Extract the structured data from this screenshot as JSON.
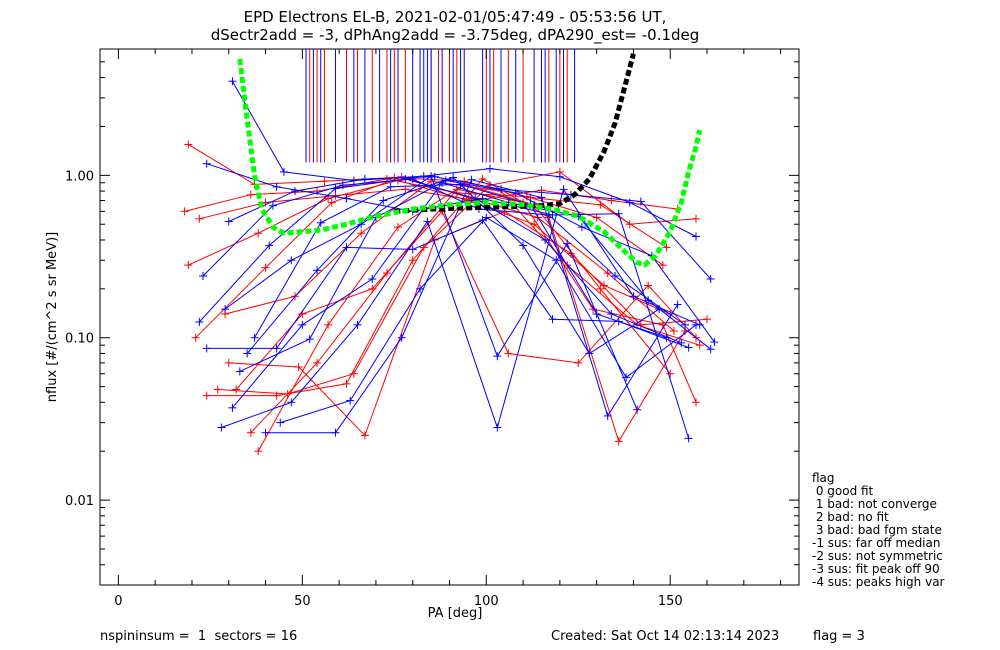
{
  "chart_data": {
    "type": "line",
    "title": "EPD Electrons EL-B, 2021-02-01/05:47:49 - 05:53:56 UT,",
    "subtitle": "dSectr2add = -3, dPhAng2add = -3.75deg, dPA290_est=  -0.1deg",
    "xlabel": "PA [deg]",
    "ylabel": "nflux [#/(cm^2 s sr MeV)]",
    "x_scale": "linear",
    "y_scale": "log",
    "xlim": [
      -5,
      185
    ],
    "ylim": [
      0.003,
      6.0
    ],
    "x_ticks": [
      0,
      50,
      100,
      150
    ],
    "x_tick_labels": [
      "0",
      "50",
      "100",
      "150"
    ],
    "y_ticks": [
      0.01,
      0.1,
      1.0
    ],
    "y_tick_labels": [
      "0.01",
      "0.10",
      "1.00"
    ],
    "grid": false,
    "colors": {
      "red": "#ff0000",
      "blue": "#0000ff",
      "green": "#00ff00",
      "black": "#000000"
    },
    "series": [
      {
        "color": "red",
        "values": [
          [
            19,
            1.55
          ],
          [
            37,
            0.88
          ],
          [
            56,
            0.92
          ],
          [
            75,
            0.97
          ],
          [
            94,
            0.92
          ],
          [
            112,
            0.73
          ],
          [
            131,
            0.66
          ],
          [
            149,
            0.36
          ]
        ]
      },
      {
        "color": "red",
        "values": [
          [
            21,
            0.1
          ],
          [
            40,
            0.27
          ],
          [
            58,
            0.68
          ],
          [
            77,
            0.98
          ],
          [
            96,
            0.72
          ],
          [
            114,
            0.55
          ],
          [
            133,
            0.25
          ],
          [
            151,
            0.11
          ]
        ]
      },
      {
        "color": "red",
        "values": [
          [
            18,
            0.6
          ],
          [
            36,
            0.76
          ],
          [
            54,
            0.8
          ],
          [
            73,
            0.95
          ],
          [
            92,
            0.78
          ],
          [
            111,
            0.74
          ],
          [
            130,
            0.55
          ],
          [
            148,
            0.28
          ]
        ]
      },
      {
        "color": "red",
        "values": [
          [
            19,
            0.28
          ],
          [
            38,
            0.44
          ],
          [
            57,
            0.72
          ],
          [
            76,
            0.93
          ],
          [
            95,
            0.7
          ],
          [
            113,
            0.5
          ],
          [
            132,
            0.21
          ],
          [
            150,
            0.14
          ]
        ]
      },
      {
        "color": "red",
        "values": [
          [
            22,
            0.54
          ],
          [
            40,
            0.68
          ],
          [
            59,
            0.75
          ],
          [
            78,
            0.82
          ],
          [
            97,
            0.7
          ],
          [
            115,
            0.81
          ],
          [
            134,
            0.7
          ],
          [
            152,
            0.62
          ]
        ]
      },
      {
        "color": "red",
        "values": [
          [
            24,
            0.044
          ],
          [
            43,
            0.044
          ],
          [
            62,
            0.052
          ],
          [
            80,
            0.3
          ],
          [
            99,
            0.95
          ],
          [
            117,
            0.55
          ],
          [
            136,
            0.023
          ],
          [
            154,
            0.11
          ]
        ]
      },
      {
        "color": "red",
        "values": [
          [
            27,
            0.048
          ],
          [
            46,
            0.045
          ],
          [
            64,
            0.06
          ],
          [
            83,
            0.36
          ],
          [
            101,
            0.87
          ],
          [
            120,
            1.05
          ],
          [
            139,
            0.5
          ],
          [
            157,
            0.54
          ]
        ]
      },
      {
        "color": "red",
        "values": [
          [
            29,
            0.14
          ],
          [
            48,
            0.18
          ],
          [
            66,
            0.44
          ],
          [
            85,
            0.92
          ],
          [
            104,
            0.8
          ],
          [
            122,
            0.28
          ],
          [
            141,
            0.12
          ],
          [
            158,
            0.09
          ]
        ]
      },
      {
        "color": "red",
        "values": [
          [
            36,
            0.026
          ],
          [
            54,
            0.07
          ],
          [
            73,
            0.25
          ],
          [
            92,
            0.82
          ],
          [
            110,
            0.68
          ],
          [
            129,
            0.15
          ],
          [
            148,
            0.12
          ],
          [
            157,
            0.04
          ]
        ]
      },
      {
        "color": "red",
        "values": [
          [
            38,
            0.02
          ],
          [
            57,
            0.12
          ],
          [
            76,
            0.48
          ],
          [
            94,
            0.88
          ],
          [
            113,
            0.66
          ],
          [
            131,
            0.2
          ],
          [
            150,
            0.06
          ]
        ]
      },
      {
        "color": "red",
        "values": [
          [
            30,
            0.07
          ],
          [
            49,
            0.066
          ],
          [
            67,
            0.025
          ],
          [
            86,
            0.4
          ],
          [
            105,
            0.6
          ],
          [
            123,
            0.33
          ],
          [
            142,
            0.12
          ],
          [
            160,
            0.13
          ]
        ]
      },
      {
        "color": "red",
        "values": [
          [
            32,
            0.048
          ],
          [
            50,
            0.14
          ],
          [
            69,
            0.2
          ],
          [
            88,
            0.6
          ],
          [
            106,
            0.08
          ],
          [
            125,
            0.07
          ],
          [
            144,
            0.21
          ],
          [
            157,
            0.1
          ]
        ]
      },
      {
        "color": "blue",
        "values": [
          [
            31,
            3.8
          ],
          [
            45,
            1.05
          ],
          [
            64,
            0.93
          ],
          [
            83,
            0.99
          ],
          [
            101,
            1.1
          ],
          [
            120,
            0.98
          ],
          [
            139,
            0.68
          ],
          [
            157,
            0.42
          ]
        ]
      },
      {
        "color": "blue",
        "values": [
          [
            24,
            1.18
          ],
          [
            43,
            0.85
          ],
          [
            62,
            0.72
          ],
          [
            80,
            0.6
          ],
          [
            99,
            0.72
          ],
          [
            118,
            0.57
          ],
          [
            136,
            0.58
          ],
          [
            155,
            0.024
          ]
        ]
      },
      {
        "color": "blue",
        "values": [
          [
            30,
            0.52
          ],
          [
            48,
            0.8
          ],
          [
            67,
            0.95
          ],
          [
            86,
            0.98
          ],
          [
            104,
            0.82
          ],
          [
            123,
            0.76
          ],
          [
            142,
            0.69
          ],
          [
            161,
            0.23
          ]
        ]
      },
      {
        "color": "blue",
        "values": [
          [
            23,
            0.24
          ],
          [
            42,
            0.65
          ],
          [
            61,
            0.87
          ],
          [
            80,
            0.95
          ],
          [
            98,
            0.62
          ],
          [
            117,
            0.57
          ],
          [
            135,
            0.24
          ],
          [
            154,
            0.12
          ]
        ]
      },
      {
        "color": "blue",
        "values": [
          [
            22,
            0.125
          ],
          [
            41,
            0.37
          ],
          [
            59,
            0.83
          ],
          [
            78,
            0.95
          ],
          [
            97,
            0.72
          ],
          [
            116,
            0.4
          ],
          [
            134,
            0.14
          ],
          [
            153,
            0.093
          ]
        ]
      },
      {
        "color": "blue",
        "values": [
          [
            24,
            0.086
          ],
          [
            43,
            0.086
          ],
          [
            62,
            0.36
          ],
          [
            80,
            0.35
          ],
          [
            99,
            0.53
          ],
          [
            118,
            0.13
          ],
          [
            136,
            0.126
          ],
          [
            155,
            0.087
          ]
        ]
      },
      {
        "color": "blue",
        "values": [
          [
            28,
            0.028
          ],
          [
            47,
            0.04
          ],
          [
            65,
            0.12
          ],
          [
            84,
            0.52
          ],
          [
            103,
            0.028
          ],
          [
            121,
            0.82
          ],
          [
            140,
            0.18
          ],
          [
            158,
            0.12
          ]
        ]
      },
      {
        "color": "blue",
        "values": [
          [
            31,
            0.037
          ],
          [
            50,
            0.12
          ],
          [
            69,
            0.23
          ],
          [
            88,
            0.9
          ],
          [
            106,
            0.68
          ],
          [
            125,
            0.56
          ],
          [
            144,
            0.17
          ],
          [
            161,
            0.085
          ]
        ]
      },
      {
        "color": "blue",
        "values": [
          [
            33,
            0.062
          ],
          [
            52,
            0.098
          ],
          [
            70,
            0.55
          ],
          [
            89,
            0.93
          ],
          [
            108,
            0.78
          ],
          [
            126,
            0.48
          ],
          [
            145,
            0.32
          ],
          [
            162,
            0.094
          ]
        ]
      },
      {
        "color": "blue",
        "values": [
          [
            35,
            0.08
          ],
          [
            54,
            0.26
          ],
          [
            72,
            0.7
          ],
          [
            91,
            0.97
          ],
          [
            110,
            0.37
          ],
          [
            128,
            0.08
          ],
          [
            147,
            0.15
          ]
        ]
      },
      {
        "color": "blue",
        "values": [
          [
            37,
            0.1
          ],
          [
            55,
            0.51
          ],
          [
            74,
            0.85
          ],
          [
            93,
            0.88
          ],
          [
            112,
            0.66
          ],
          [
            130,
            0.14
          ],
          [
            149,
            0.1
          ]
        ]
      },
      {
        "color": "blue",
        "values": [
          [
            40,
            0.026
          ],
          [
            59,
            0.026
          ],
          [
            77,
            0.1
          ],
          [
            96,
            0.94
          ],
          [
            115,
            0.73
          ],
          [
            133,
            0.033
          ],
          [
            152,
            0.16
          ]
        ]
      },
      {
        "color": "blue",
        "values": [
          [
            44,
            0.03
          ],
          [
            63,
            0.041
          ],
          [
            82,
            0.2
          ],
          [
            100,
            0.55
          ],
          [
            119,
            0.3
          ],
          [
            138,
            0.057
          ],
          [
            157,
            0.12
          ]
        ]
      },
      {
        "color": "blue",
        "values": [
          [
            29,
            0.15
          ],
          [
            47,
            0.3
          ],
          [
            66,
            0.5
          ],
          [
            85,
            0.99
          ],
          [
            103,
            0.077
          ],
          [
            122,
            0.38
          ],
          [
            141,
            0.036
          ]
        ]
      }
    ],
    "green_fit_curve": [
      [
        33,
        5.2
      ],
      [
        35,
        2.2
      ],
      [
        37,
        1.0
      ],
      [
        39,
        0.62
      ],
      [
        42,
        0.48
      ],
      [
        45,
        0.44
      ],
      [
        50,
        0.45
      ],
      [
        55,
        0.46
      ],
      [
        62,
        0.5
      ],
      [
        70,
        0.56
      ],
      [
        80,
        0.62
      ],
      [
        90,
        0.66
      ],
      [
        100,
        0.68
      ],
      [
        110,
        0.66
      ],
      [
        118,
        0.62
      ],
      [
        125,
        0.56
      ],
      [
        132,
        0.45
      ],
      [
        137,
        0.35
      ],
      [
        141,
        0.29
      ],
      [
        143,
        0.28
      ],
      [
        146,
        0.32
      ],
      [
        150,
        0.45
      ],
      [
        153,
        0.68
      ],
      [
        155,
        1.05
      ],
      [
        157,
        1.5
      ],
      [
        158,
        1.9
      ]
    ],
    "black_fit_curve": [
      [
        75,
        0.6
      ],
      [
        85,
        0.62
      ],
      [
        95,
        0.63
      ],
      [
        105,
        0.64
      ],
      [
        115,
        0.65
      ],
      [
        120,
        0.67
      ],
      [
        124,
        0.76
      ],
      [
        128,
        0.95
      ],
      [
        132,
        1.4
      ],
      [
        135,
        2.1
      ],
      [
        137,
        3.1
      ],
      [
        139,
        4.6
      ],
      [
        140,
        5.6
      ]
    ],
    "vertical_lines": {
      "y_from": 1.2,
      "red_x": [
        52,
        54,
        56,
        62,
        65,
        69,
        73,
        75,
        78,
        85,
        87,
        90,
        92,
        100,
        102,
        106,
        110,
        115,
        117,
        120,
        122
      ],
      "blue_x": [
        51,
        53,
        55,
        59,
        64,
        67,
        71,
        74,
        76,
        80,
        82,
        83,
        84,
        85,
        88,
        91,
        93,
        94,
        99,
        101,
        104,
        108,
        113,
        115,
        116,
        119,
        121,
        124
      ]
    },
    "legend_placement": "bottom-right",
    "legend": {
      "title": "flag",
      "entries": [
        " 0 good fit",
        " 1 bad: not converge",
        " 2 bad: no fit",
        " 3 bad: bad fgm state",
        "-1 sus: far off median",
        "-2 sus: not symmetric",
        "-3 sus: fit peak off 90",
        "-4 sus: peaks high var"
      ]
    }
  },
  "footer": {
    "left": "nspininsum =  1  sectors = 16",
    "center": "Created: Sat Oct 14 02:13:14 2023",
    "right": "flag = 3"
  }
}
